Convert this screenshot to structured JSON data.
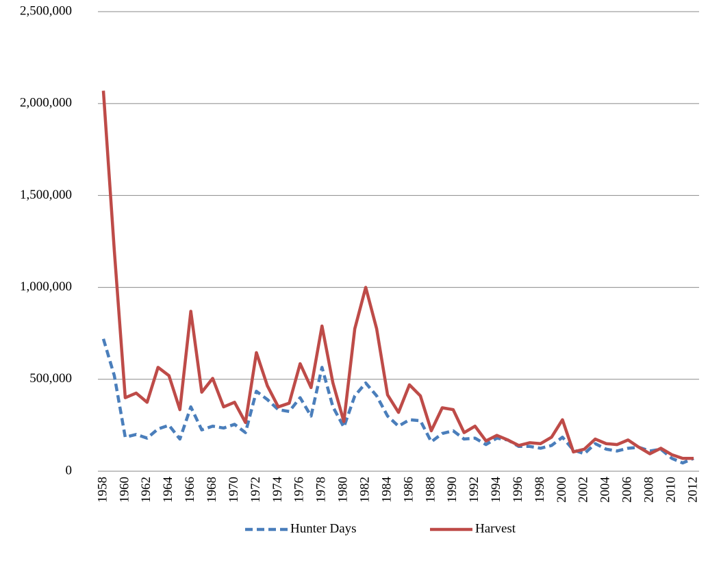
{
  "chart_data": {
    "type": "line",
    "categories": [
      "1958",
      null,
      "1960",
      null,
      "1962",
      null,
      "1964",
      null,
      "1966",
      null,
      "1968",
      null,
      "1970",
      null,
      "1972",
      null,
      "1974",
      null,
      "1976",
      null,
      "1978",
      null,
      "1980",
      null,
      "1982",
      null,
      "1984",
      null,
      "1986",
      null,
      "1988",
      null,
      "1990",
      null,
      "1992",
      null,
      "1994",
      null,
      "1996",
      null,
      "1998",
      null,
      "2000",
      null,
      "2002",
      null,
      "2004",
      null,
      "2006",
      null,
      "2008",
      null,
      "2010",
      null,
      "2012"
    ],
    "series": [
      {
        "name": "Hunter Days",
        "color": "#4a7ebb",
        "line_style": "dashed",
        "values": [
          720000,
          520000,
          185000,
          200000,
          180000,
          230000,
          250000,
          175000,
          350000,
          225000,
          245000,
          235000,
          255000,
          210000,
          435000,
          390000,
          335000,
          325000,
          400000,
          300000,
          565000,
          350000,
          240000,
          410000,
          480000,
          410000,
          300000,
          245000,
          280000,
          275000,
          160000,
          205000,
          220000,
          175000,
          180000,
          145000,
          180000,
          170000,
          135000,
          135000,
          125000,
          140000,
          185000,
          115000,
          95000,
          150000,
          120000,
          110000,
          125000,
          130000,
          110000,
          120000,
          70000,
          45000,
          70000
        ]
      },
      {
        "name": "Harvest",
        "color": "#be4b48",
        "line_style": "solid",
        "values": [
          2070000,
          1200000,
          400000,
          425000,
          375000,
          565000,
          520000,
          335000,
          870000,
          430000,
          505000,
          350000,
          375000,
          265000,
          645000,
          465000,
          350000,
          370000,
          585000,
          455000,
          790000,
          480000,
          270000,
          775000,
          1000000,
          775000,
          415000,
          320000,
          470000,
          410000,
          220000,
          345000,
          335000,
          210000,
          245000,
          165000,
          195000,
          170000,
          140000,
          155000,
          150000,
          185000,
          280000,
          105000,
          120000,
          175000,
          150000,
          145000,
          170000,
          130000,
          95000,
          125000,
          90000,
          70000,
          70000
        ]
      }
    ],
    "ylim": [
      0,
      2500000
    ],
    "yticks": [
      0,
      {
        "value": 500000,
        "label": "500,000"
      },
      {
        "value": 1000000,
        "label": "1,000,000"
      },
      {
        "value": 1500000,
        "label": "1,500,000"
      },
      {
        "value": 2000000,
        "label": "2,000,000"
      },
      {
        "value": 2500000,
        "label": "2,500,000"
      }
    ],
    "grid": true,
    "legend": "bottom"
  }
}
